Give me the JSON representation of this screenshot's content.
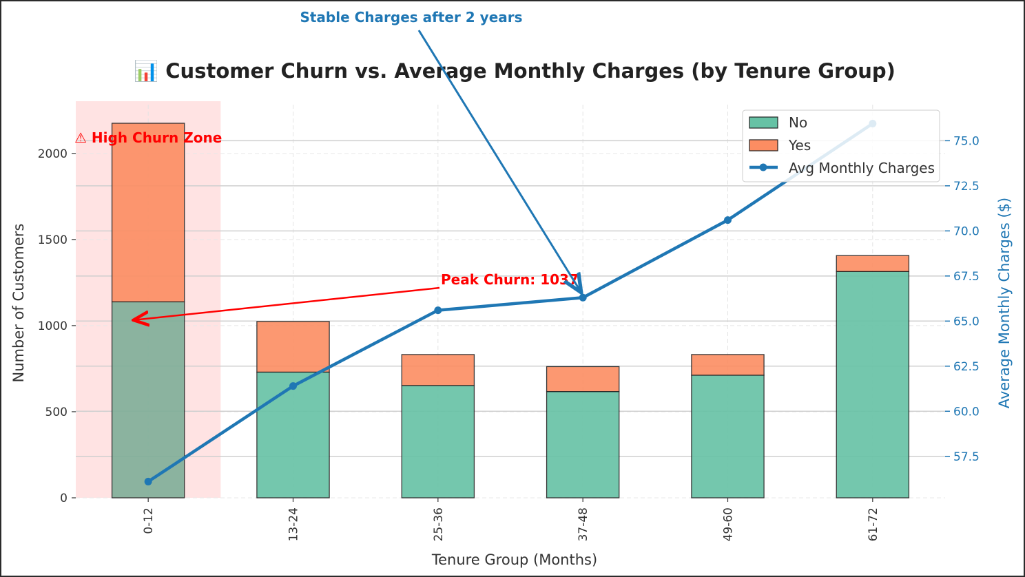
{
  "chart_data": {
    "type": "bar",
    "stacked": true,
    "title": "📊 Customer Churn vs. Average Monthly Charges (by Tenure Group)",
    "xlabel": "Tenure Group (Months)",
    "ylabel": "Number of Customers",
    "y2label": "Average Monthly Charges ($)",
    "categories": [
      "0-12",
      "13-24",
      "25-36",
      "37-48",
      "49-60",
      "61-72"
    ],
    "series": [
      {
        "name": "No",
        "type": "bar",
        "axis": "left",
        "color": "#66c2a5",
        "values": [
          1138,
          730,
          652,
          617,
          712,
          1314
        ]
      },
      {
        "name": "Yes",
        "type": "bar",
        "axis": "left",
        "color": "#fc8d62",
        "values": [
          1037,
          294,
          180,
          145,
          120,
          93
        ]
      },
      {
        "name": "Avg Monthly Charges",
        "type": "line",
        "axis": "right",
        "color": "#1f77b4",
        "values": [
          56.1,
          61.4,
          65.6,
          66.3,
          70.6,
          75.95
        ]
      }
    ],
    "ylim": [
      0,
      2283
    ],
    "y2lim": [
      55.2,
      77.0
    ],
    "yticks": [
      0,
      500,
      1000,
      1500,
      2000
    ],
    "y2ticks": [
      57.5,
      60.0,
      62.5,
      65.0,
      67.5,
      70.0,
      72.5,
      75.0
    ],
    "legend_position": "top-right",
    "grid": true,
    "highlight": {
      "category": "0-12",
      "label": "⚠ High Churn Zone",
      "color": "#ffcccc"
    },
    "annotations": [
      {
        "text": "Peak Churn: 1037",
        "color": "#ff0000",
        "target_category": "0-12",
        "target_value": 1037
      },
      {
        "text": "Stable Charges after 2 years",
        "color": "#1f77b4",
        "target_category": "37-48",
        "target_value": 66.3
      }
    ]
  }
}
